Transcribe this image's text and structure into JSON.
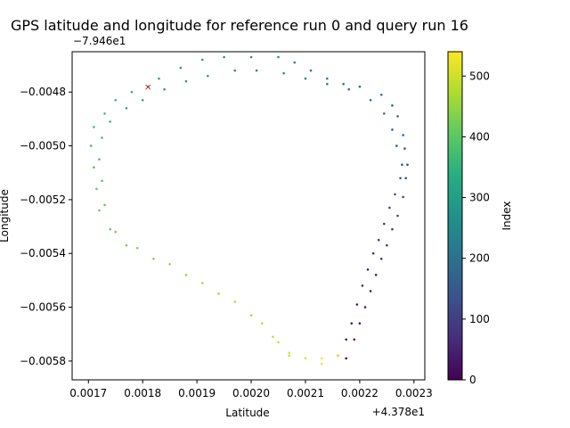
{
  "chart_data": {
    "type": "scatter",
    "title": "GPS latitude and longitude for reference run 0 and query run 16",
    "xlabel": "Latitude",
    "ylabel": "Longitude",
    "x_offset_label": "+4.378e1",
    "y_offset_label": "−7.946e1",
    "x_offset": 43.78,
    "y_offset": -79.46,
    "xlim": [
      0.00167,
      0.00232
    ],
    "ylim": [
      -0.00587,
      -0.00465
    ],
    "xticks": [
      0.0017,
      0.0018,
      0.0019,
      0.002,
      0.0021,
      0.0022,
      0.0023
    ],
    "xtick_labels": [
      "0.0017",
      "0.0018",
      "0.0019",
      "0.0020",
      "0.0021",
      "0.0022",
      "0.0023"
    ],
    "yticks": [
      -0.0048,
      -0.005,
      -0.0052,
      -0.0054,
      -0.0056,
      -0.0058
    ],
    "ytick_labels": [
      "−0.0048",
      "−0.0050",
      "−0.0052",
      "−0.0054",
      "−0.0056",
      "−0.0058"
    ],
    "colorbar": {
      "label": "Index",
      "range": [
        0,
        540
      ],
      "ticks": [
        0,
        100,
        200,
        300,
        400,
        500
      ],
      "tick_labels": [
        "0",
        "100",
        "200",
        "300",
        "400",
        "500"
      ],
      "colormap": "viridis"
    },
    "series": [
      {
        "points": [
          [
            0.002175,
            -0.00579
          ],
          [
            0.00219,
            -0.00572
          ],
          [
            0.0022,
            -0.00566
          ],
          [
            0.00221,
            -0.0056
          ],
          [
            0.00222,
            -0.00554
          ],
          [
            0.00223,
            -0.00548
          ],
          [
            0.00224,
            -0.00542
          ],
          [
            0.00225,
            -0.00537
          ],
          [
            0.00226,
            -0.00531
          ],
          [
            0.00227,
            -0.00526
          ],
          [
            0.00228,
            -0.00519
          ],
          [
            0.002285,
            -0.00512
          ],
          [
            0.002288,
            -0.00507
          ],
          [
            0.002283,
            -0.00501
          ],
          [
            0.00228,
            -0.00496
          ],
          [
            0.00227,
            -0.00489
          ],
          [
            0.00226,
            -0.00485
          ],
          [
            0.00224,
            -0.00481
          ],
          [
            0.0022,
            -0.00478
          ],
          [
            0.00217,
            -0.00477
          ],
          [
            0.00214,
            -0.00475
          ],
          [
            0.00211,
            -0.00472
          ],
          [
            0.00208,
            -0.00469
          ],
          [
            0.00205,
            -0.00467
          ],
          [
            0.002,
            -0.00467
          ],
          [
            0.00195,
            -0.00467
          ],
          [
            0.00191,
            -0.00468
          ],
          [
            0.00187,
            -0.00471
          ],
          [
            0.00183,
            -0.00475
          ],
          [
            0.00181,
            -0.00478
          ],
          [
            0.00178,
            -0.0048
          ],
          [
            0.00175,
            -0.00483
          ],
          [
            0.00173,
            -0.00488
          ],
          [
            0.00171,
            -0.00493
          ],
          [
            0.001705,
            -0.005
          ],
          [
            0.00171,
            -0.00508
          ],
          [
            0.001715,
            -0.00516
          ],
          [
            0.00172,
            -0.00524
          ],
          [
            0.00175,
            -0.00532
          ],
          [
            0.00179,
            -0.00538
          ],
          [
            0.00185,
            -0.00544
          ],
          [
            0.00191,
            -0.00551
          ],
          [
            0.00197,
            -0.00558
          ],
          [
            0.00202,
            -0.00566
          ],
          [
            0.00205,
            -0.00573
          ],
          [
            0.00207,
            -0.00577
          ],
          [
            0.0021,
            -0.00579
          ],
          [
            0.00213,
            -0.00581
          ],
          [
            0.00216,
            -0.00578
          ]
        ],
        "index_range": [
          0,
          540
        ]
      },
      {
        "points": [
          [
            0.00216,
            -0.00578
          ],
          [
            0.002175,
            -0.00572
          ],
          [
            0.002185,
            -0.00566
          ],
          [
            0.002195,
            -0.00559
          ],
          [
            0.002205,
            -0.00552
          ],
          [
            0.002215,
            -0.00546
          ],
          [
            0.002225,
            -0.0054
          ],
          [
            0.002235,
            -0.00535
          ],
          [
            0.002245,
            -0.00529
          ],
          [
            0.002255,
            -0.00523
          ],
          [
            0.002265,
            -0.00518
          ],
          [
            0.002275,
            -0.00512
          ],
          [
            0.002278,
            -0.00507
          ],
          [
            0.002268,
            -0.005
          ],
          [
            0.00226,
            -0.00494
          ],
          [
            0.002245,
            -0.00488
          ],
          [
            0.00222,
            -0.00483
          ],
          [
            0.00218,
            -0.00479
          ],
          [
            0.00214,
            -0.00477
          ],
          [
            0.0021,
            -0.00475
          ],
          [
            0.00206,
            -0.00473
          ],
          [
            0.00201,
            -0.00472
          ],
          [
            0.00197,
            -0.00472
          ],
          [
            0.00192,
            -0.00474
          ],
          [
            0.00188,
            -0.00476
          ],
          [
            0.00184,
            -0.00479
          ],
          [
            0.0018,
            -0.00483
          ],
          [
            0.00177,
            -0.00486
          ],
          [
            0.00174,
            -0.00491
          ],
          [
            0.001725,
            -0.00497
          ],
          [
            0.00172,
            -0.00505
          ],
          [
            0.001725,
            -0.00513
          ],
          [
            0.00173,
            -0.00522
          ],
          [
            0.00174,
            -0.00531
          ],
          [
            0.00177,
            -0.00537
          ],
          [
            0.00182,
            -0.00542
          ],
          [
            0.00188,
            -0.00548
          ],
          [
            0.00194,
            -0.00555
          ],
          [
            0.002,
            -0.00563
          ],
          [
            0.00204,
            -0.00571
          ],
          [
            0.00207,
            -0.00578
          ],
          [
            0.0021,
            -0.00579
          ],
          [
            0.00213,
            -0.00579
          ],
          [
            0.00216,
            -0.00578
          ]
        ],
        "index_range": [
          0,
          540
        ]
      }
    ],
    "marker": {
      "x": 0.00181,
      "y": -0.00478,
      "color": "#d62728"
    }
  }
}
